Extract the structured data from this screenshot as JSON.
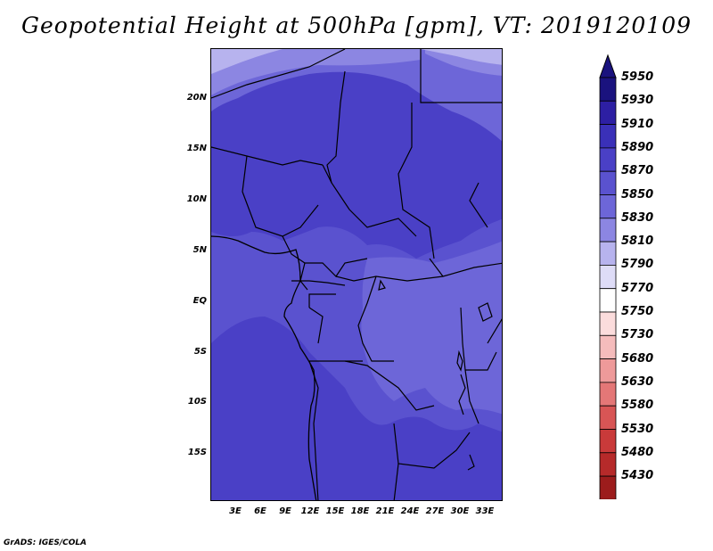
{
  "title": "Geopotential Height at 500hPa [gpm], VT: 2019120109",
  "credit": "GrADS: IGES/COLA",
  "lat_labels": [
    "20N",
    "15N",
    "10N",
    "5N",
    "EQ",
    "5S",
    "10S",
    "15S"
  ],
  "lon_labels": [
    "3E",
    "6E",
    "9E",
    "12E",
    "15E",
    "18E",
    "21E",
    "24E",
    "27E",
    "30E",
    "33E"
  ],
  "colorbar": {
    "labels": [
      "5950",
      "5930",
      "5910",
      "5890",
      "5870",
      "5850",
      "5830",
      "5810",
      "5790",
      "5770",
      "5750",
      "5730",
      "5680",
      "5630",
      "5580",
      "5530",
      "5480",
      "5430"
    ],
    "colors": [
      "#1a127e",
      "#2d1fa3",
      "#3a30b8",
      "#4a40c6",
      "#5a52cf",
      "#6d66d8",
      "#8c86e2",
      "#b7b3ee",
      "#dedcf7",
      "#ffffff",
      "#fbdcdc",
      "#f5bcbc",
      "#ee9a9a",
      "#e47777",
      "#d85555",
      "#c93a3a",
      "#b62a2a",
      "#9c1c1c"
    ]
  },
  "field_colors": {
    "c5890": "#4a40c6",
    "c5870": "#5a52cf",
    "c5850": "#6d66d8",
    "c5830": "#8c86e2",
    "c5810": "#b7b3ee",
    "c5790": "#dedcf7"
  }
}
